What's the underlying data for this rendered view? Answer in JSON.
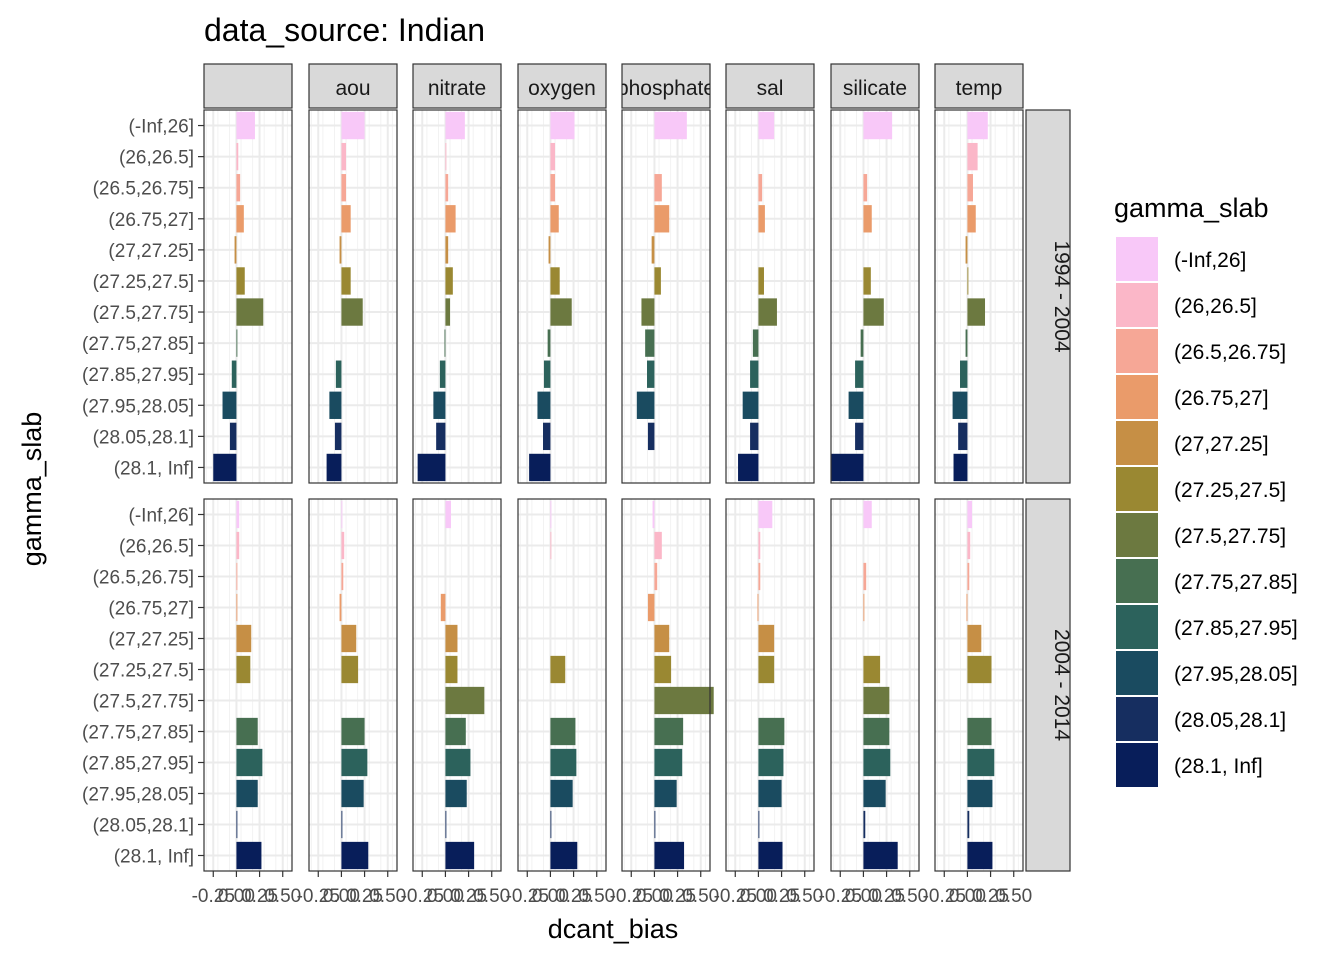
{
  "chart_data": {
    "type": "bar",
    "orientation": "horizontal",
    "faceted": true,
    "title": "data_source: Indian",
    "xlabel": "dcant_bias",
    "ylabel": "gamma_slab",
    "legend_title": "gamma_slab",
    "legend_position": "right",
    "grid": true,
    "xlim": [
      -0.35,
      0.6
    ],
    "x_ticks": [
      -0.25,
      0.0,
      0.25,
      0.5
    ],
    "x_tick_labels": [
      "-0.25",
      "0.00",
      "0.25",
      "0.50"
    ],
    "col_facets": [
      "",
      "aou",
      "nitrate",
      "oxygen",
      "phosphate",
      "sal",
      "silicate",
      "temp"
    ],
    "row_facets": [
      "1994 - 2004",
      "2004 - 2014"
    ],
    "categories": [
      "(-Inf,26]",
      "(26,26.5]",
      "(26.5,26.75]",
      "(26.75,27]",
      "(27,27.25]",
      "(27.25,27.5]",
      "(27.5,27.75]",
      "(27.75,27.85]",
      "(27.85,27.95]",
      "(27.95,28.05]",
      "(28.05,28.1]",
      "(28.1, Inf]"
    ],
    "colors": [
      "#F8C8F8",
      "#FBB7C8",
      "#F6A796",
      "#EA9B6A",
      "#C68F45",
      "#9A8832",
      "#6C7940",
      "#476F51",
      "#2C625C",
      "#1A4B60",
      "#162E60",
      "#081E5A"
    ],
    "values": {
      "1994 - 2004": {
        "": [
          0.2,
          0.02,
          0.04,
          0.08,
          -0.02,
          0.09,
          0.29,
          0.01,
          -0.05,
          -0.15,
          -0.07,
          -0.25
        ],
        "aou": [
          0.25,
          0.05,
          0.05,
          0.1,
          -0.02,
          0.1,
          0.23,
          0.0,
          -0.06,
          -0.13,
          -0.07,
          -0.16
        ],
        "nitrate": [
          0.21,
          0.01,
          0.03,
          0.11,
          0.03,
          0.08,
          0.05,
          -0.01,
          -0.06,
          -0.13,
          -0.1,
          -0.3
        ],
        "oxygen": [
          0.26,
          0.05,
          0.05,
          0.09,
          -0.02,
          0.1,
          0.23,
          -0.03,
          -0.07,
          -0.14,
          -0.08,
          -0.23
        ],
        "phosphate": [
          0.35,
          0.0,
          0.08,
          0.16,
          -0.03,
          0.07,
          -0.14,
          -0.1,
          -0.08,
          -0.19,
          -0.07,
          0.0
        ],
        "sal": [
          0.17,
          0.0,
          0.04,
          0.07,
          0.0,
          0.06,
          0.2,
          -0.06,
          -0.09,
          -0.17,
          -0.09,
          -0.22
        ],
        "silicate": [
          0.31,
          0.0,
          0.04,
          0.09,
          0.0,
          0.08,
          0.22,
          -0.03,
          -0.09,
          -0.16,
          -0.09,
          -0.35
        ],
        "temp": [
          0.22,
          0.11,
          0.06,
          0.09,
          -0.02,
          0.01,
          0.19,
          -0.02,
          -0.08,
          -0.16,
          -0.1,
          -0.15
        ]
      },
      "2004 - 2014": {
        "": [
          0.03,
          0.03,
          0.01,
          0.01,
          0.16,
          0.15,
          0.0,
          0.23,
          0.28,
          0.23,
          0.01,
          0.27
        ],
        "aou": [
          0.01,
          0.03,
          0.02,
          -0.02,
          0.16,
          0.18,
          0.0,
          0.25,
          0.28,
          0.24,
          0.01,
          0.29
        ],
        "nitrate": [
          0.06,
          0.0,
          0.0,
          -0.05,
          0.13,
          0.13,
          0.42,
          0.22,
          0.27,
          0.23,
          0.01,
          0.31
        ],
        "oxygen": [
          0.01,
          0.01,
          0.0,
          0.0,
          0.0,
          0.16,
          0.0,
          0.27,
          0.28,
          0.24,
          0.01,
          0.29
        ],
        "phosphate": [
          -0.02,
          0.08,
          0.03,
          -0.07,
          0.16,
          0.18,
          0.64,
          0.31,
          0.3,
          0.24,
          0.01,
          0.32
        ],
        "sal": [
          0.15,
          0.02,
          0.02,
          -0.01,
          0.17,
          0.17,
          0.0,
          0.28,
          0.27,
          0.25,
          0.01,
          0.26
        ],
        "silicate": [
          0.09,
          0.0,
          0.03,
          0.01,
          0.0,
          0.18,
          0.28,
          0.28,
          0.29,
          0.24,
          0.02,
          0.37
        ],
        "temp": [
          0.05,
          0.03,
          0.02,
          -0.01,
          0.15,
          0.26,
          0.0,
          0.26,
          0.29,
          0.27,
          0.02,
          0.27
        ]
      }
    }
  }
}
